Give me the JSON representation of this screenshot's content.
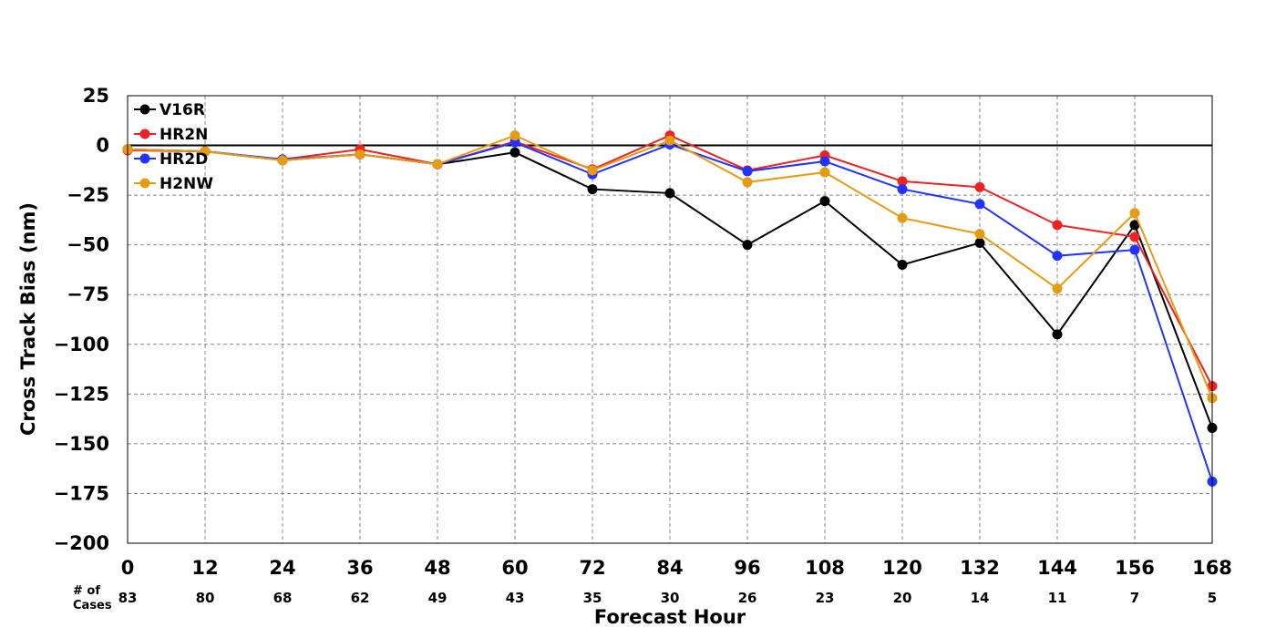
{
  "chart_data": {
    "type": "line",
    "x": [
      0,
      12,
      24,
      36,
      48,
      60,
      72,
      84,
      96,
      108,
      120,
      132,
      144,
      156,
      168
    ],
    "xlabel": "Forecast Hour",
    "ylabel": "Cross Track Bias (nm)",
    "xlim": [
      0,
      168
    ],
    "ylim": [
      -200,
      25
    ],
    "yticks": [
      25,
      0,
      -25,
      -50,
      -75,
      -100,
      -125,
      -150,
      -175,
      -200
    ],
    "ytick_labels": [
      "25",
      "0",
      "−25",
      "−50",
      "−75",
      "−100",
      "−125",
      "−150",
      "−175",
      "−200"
    ],
    "grid": true,
    "zero_line": true,
    "legend_position": "top-left",
    "cases_label": [
      "# of",
      "Cases"
    ],
    "cases": [
      83,
      80,
      68,
      62,
      49,
      43,
      35,
      30,
      26,
      23,
      20,
      14,
      11,
      7,
      5
    ],
    "series": [
      {
        "name": "V16R",
        "color": "#000000",
        "values": [
          -2,
          -3,
          -7.5,
          -4.5,
          -9.5,
          -3.5,
          -22,
          -24,
          -50,
          -28,
          -60,
          -49,
          -95,
          -40,
          -142
        ]
      },
      {
        "name": "HR2N",
        "color": "#ee2222",
        "values": [
          -2.5,
          -3,
          -7,
          -2,
          -9.5,
          2,
          -12,
          5,
          -12.5,
          -5,
          -18,
          -21,
          -40,
          -46,
          -121
        ]
      },
      {
        "name": "HR2D",
        "color": "#2233ff",
        "values": [
          -2,
          -3,
          -7,
          -4.5,
          -9.5,
          1.5,
          -14.5,
          0.5,
          -13,
          -8,
          -22,
          -29.5,
          -55.5,
          -52.5,
          -169
        ]
      },
      {
        "name": "H2NW",
        "color": "#e69c10",
        "values": [
          -2,
          -3,
          -7.5,
          -4.5,
          -9.5,
          5,
          -12.5,
          2.5,
          -18.5,
          -13.5,
          -36.5,
          -44.5,
          -72,
          -34,
          -127
        ]
      }
    ]
  }
}
